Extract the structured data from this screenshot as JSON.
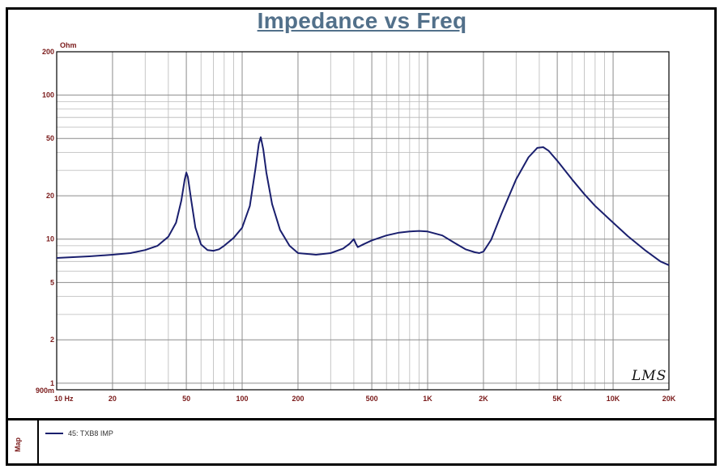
{
  "chart_data": {
    "type": "line",
    "title": "Impedance vs Freq",
    "y_unit": "Ohm",
    "x_scale": "log",
    "y_scale": "log",
    "xlim": [
      10,
      20000
    ],
    "ylim": [
      0.9,
      200
    ],
    "x_ticks": [
      {
        "value": 10,
        "label": "10  Hz"
      },
      {
        "value": 20,
        "label": "20"
      },
      {
        "value": 50,
        "label": "50"
      },
      {
        "value": 100,
        "label": "100"
      },
      {
        "value": 200,
        "label": "200"
      },
      {
        "value": 500,
        "label": "500"
      },
      {
        "value": 1000,
        "label": "1K"
      },
      {
        "value": 2000,
        "label": "2K"
      },
      {
        "value": 5000,
        "label": "5K"
      },
      {
        "value": 10000,
        "label": "10K"
      },
      {
        "value": 20000,
        "label": "20K"
      }
    ],
    "y_ticks": [
      {
        "value": 200,
        "label": "200"
      },
      {
        "value": 100,
        "label": "100"
      },
      {
        "value": 50,
        "label": "50"
      },
      {
        "value": 20,
        "label": "20"
      },
      {
        "value": 10,
        "label": "10"
      },
      {
        "value": 5,
        "label": "5"
      },
      {
        "value": 2,
        "label": "2"
      },
      {
        "value": 1,
        "label": "1"
      },
      {
        "value": 0.9,
        "label": "900m"
      }
    ],
    "grid": true,
    "series": [
      {
        "name": "45: TXB8  IMP",
        "color": "#1a1f6e",
        "x": [
          10,
          15,
          20,
          25,
          30,
          35,
          40,
          44,
          47,
          49,
          50,
          51,
          53,
          56,
          60,
          65,
          70,
          75,
          80,
          90,
          100,
          110,
          118,
          123,
          126,
          130,
          135,
          145,
          160,
          180,
          200,
          250,
          300,
          350,
          380,
          400,
          410,
          420,
          450,
          500,
          600,
          700,
          800,
          900,
          1000,
          1200,
          1400,
          1600,
          1800,
          1900,
          2000,
          2200,
          2500,
          3000,
          3500,
          3900,
          4200,
          4500,
          5000,
          6000,
          7000,
          8000,
          10000,
          12000,
          15000,
          18000,
          20000
        ],
        "y": [
          7.4,
          7.6,
          7.8,
          8.0,
          8.4,
          9.0,
          10.4,
          13.0,
          18.5,
          26.0,
          29.0,
          27.0,
          19.0,
          12.0,
          9.2,
          8.4,
          8.3,
          8.5,
          9.0,
          10.2,
          12.0,
          17.0,
          31.0,
          46.0,
          51.0,
          42.0,
          29.0,
          17.5,
          11.6,
          9.0,
          8.0,
          7.8,
          8.0,
          8.6,
          9.3,
          10.0,
          9.3,
          8.8,
          9.2,
          9.8,
          10.6,
          11.1,
          11.3,
          11.4,
          11.3,
          10.6,
          9.4,
          8.5,
          8.1,
          8.0,
          8.2,
          9.9,
          15.0,
          26.0,
          37.0,
          43.0,
          43.5,
          41.0,
          35.0,
          26.0,
          20.5,
          17.0,
          13.0,
          10.5,
          8.3,
          7.0,
          6.6
        ]
      }
    ]
  },
  "legend": {
    "entry": "45: TXB8  IMP"
  },
  "panel": {
    "label": "Map"
  },
  "watermark": {
    "text": "LMS"
  }
}
